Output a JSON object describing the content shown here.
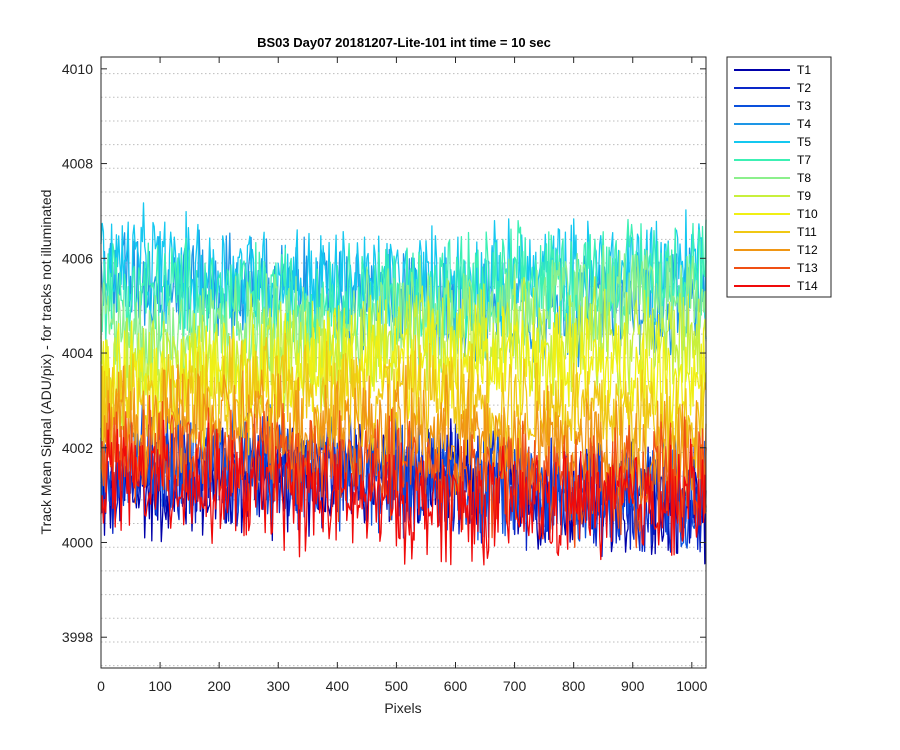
{
  "chart_data": {
    "type": "line",
    "title": "BS03 Day07 20181207-Lite-101 int time = 10 sec",
    "xlabel": "Pixels",
    "ylabel": "Track Mean Signal (ADU/pix) - for tracks not illuminated",
    "xlim": [
      0,
      1024
    ],
    "ylim": [
      3997.35,
      4010.25
    ],
    "x_ticks": [
      0,
      100,
      200,
      300,
      400,
      500,
      600,
      700,
      800,
      900,
      1000
    ],
    "y_ticks": [
      3998,
      4000,
      4002,
      4004,
      4006,
      4008,
      4010
    ],
    "y_minor_grid": [
      3997.4,
      3997.9,
      3998.4,
      3998.9,
      3999.4,
      3999.9,
      4000.4,
      4000.9,
      4001.4,
      4001.9,
      4002.4,
      4002.9,
      4003.4,
      4003.9,
      4004.4,
      4004.9,
      4005.4,
      4005.9,
      4006.4,
      4006.9,
      4007.4,
      4007.9,
      4008.4,
      4008.9,
      4009.4,
      4009.9
    ],
    "grid": "horizontal dotted",
    "legend_position": "outside top-right",
    "noise_amplitude": 1.0,
    "sample_step": 2,
    "series": [
      {
        "name": "T1",
        "color": "#0000aa",
        "mean": 4001.0
      },
      {
        "name": "T2",
        "color": "#0a28c8",
        "mean": 4001.2
      },
      {
        "name": "T3",
        "color": "#0a50dc",
        "mean": 4001.4
      },
      {
        "name": "T4",
        "color": "#1e96e6",
        "mean": 4005.3
      },
      {
        "name": "T5",
        "color": "#14c8f0",
        "mean": 4005.8
      },
      {
        "name": "T7",
        "color": "#3cf0b4",
        "mean": 4005.5
      },
      {
        "name": "T8",
        "color": "#8cf08c",
        "mean": 4004.8
      },
      {
        "name": "T9",
        "color": "#c8f03c",
        "mean": 4004.0
      },
      {
        "name": "T10",
        "color": "#f0f014",
        "mean": 4003.5
      },
      {
        "name": "T11",
        "color": "#f0c814",
        "mean": 4002.8
      },
      {
        "name": "T12",
        "color": "#f09614",
        "mean": 4002.2
      },
      {
        "name": "T13",
        "color": "#f05014",
        "mean": 4001.6
      },
      {
        "name": "T14",
        "color": "#f00a0a",
        "mean": 4001.1
      }
    ]
  }
}
